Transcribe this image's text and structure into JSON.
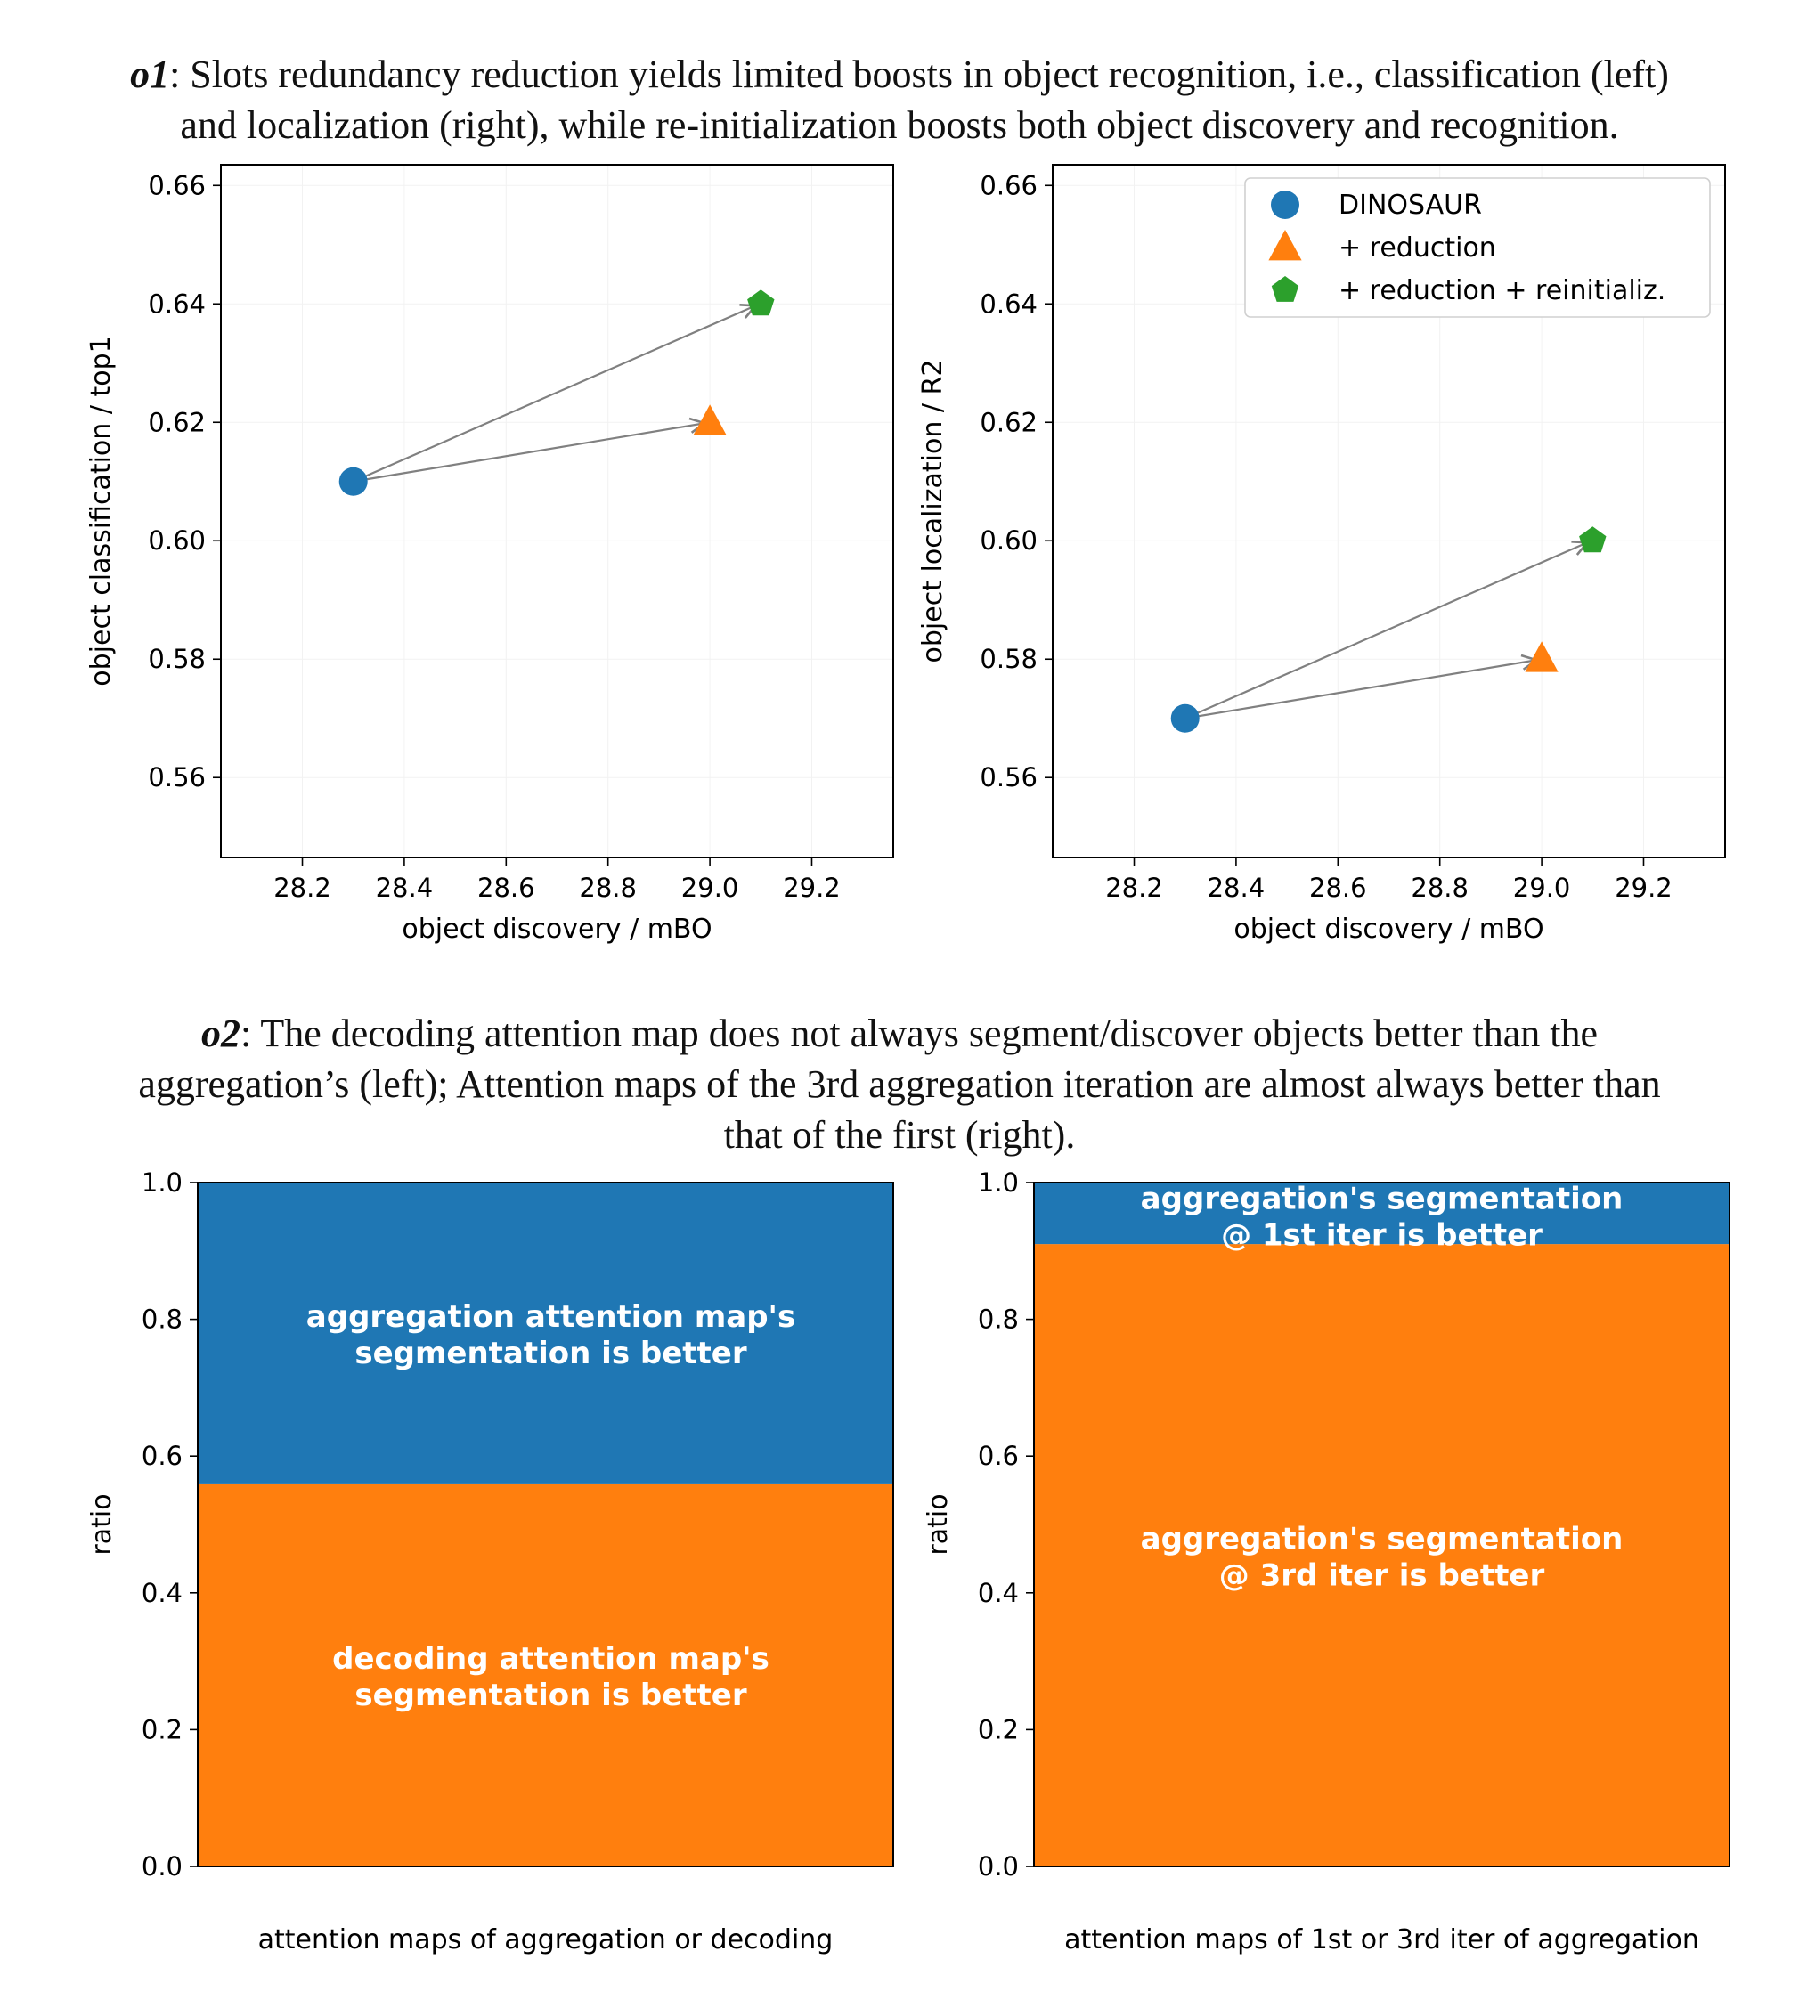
{
  "captions": {
    "o1": {
      "label": "o1",
      "line1": ": Slots redundancy reduction yields limited boosts in object recognition, i.e., classification (left)",
      "line2": "and localization (right), while re-initialization boosts both object discovery and recognition."
    },
    "o2": {
      "label": "o2",
      "line1": ": The decoding attention map does not always segment/discover objects better than the",
      "line2": "aggregation’s (left); Attention maps of the 3rd aggregation iteration are almost always better than",
      "line3": "that of the first (right)."
    }
  },
  "colors": {
    "blue": "#1f77b4",
    "orange": "#ff7f0e",
    "green": "#2ca02c",
    "arrow": "#808080"
  },
  "chart_data": [
    {
      "type": "scatter",
      "id": "top-left",
      "xlabel": "object discovery / mBO",
      "ylabel": "object classification / top1",
      "xlim": [
        28.04,
        29.36
      ],
      "ylim": [
        0.5465,
        0.6635
      ],
      "xticks": [
        28.2,
        28.4,
        28.6,
        28.8,
        29.0,
        29.2
      ],
      "yticks": [
        0.56,
        0.58,
        0.6,
        0.62,
        0.64,
        0.66
      ],
      "points": [
        {
          "name": "DINOSAUR",
          "marker": "circle",
          "x": 28.3,
          "y": 0.61
        },
        {
          "name": "+ reduction",
          "marker": "triangle",
          "x": 29.0,
          "y": 0.62
        },
        {
          "name": "+ reduction + reinitializ.",
          "marker": "pentagon",
          "x": 29.1,
          "y": 0.64
        }
      ],
      "arrows": [
        {
          "from": [
            28.3,
            0.61
          ],
          "to": [
            29.0,
            0.62
          ]
        },
        {
          "from": [
            28.3,
            0.61
          ],
          "to": [
            29.1,
            0.64
          ]
        }
      ],
      "legend": null
    },
    {
      "type": "scatter",
      "id": "top-right",
      "xlabel": "object discovery / mBO",
      "ylabel": "object localization / R2",
      "xlim": [
        28.04,
        29.36
      ],
      "ylim": [
        0.5465,
        0.6635
      ],
      "xticks": [
        28.2,
        28.4,
        28.6,
        28.8,
        29.0,
        29.2
      ],
      "yticks": [
        0.56,
        0.58,
        0.6,
        0.62,
        0.64,
        0.66
      ],
      "points": [
        {
          "name": "DINOSAUR",
          "marker": "circle",
          "x": 28.3,
          "y": 0.57
        },
        {
          "name": "+ reduction",
          "marker": "triangle",
          "x": 29.0,
          "y": 0.58
        },
        {
          "name": "+ reduction + reinitializ.",
          "marker": "pentagon",
          "x": 29.1,
          "y": 0.6
        }
      ],
      "arrows": [
        {
          "from": [
            28.3,
            0.57
          ],
          "to": [
            29.0,
            0.58
          ]
        },
        {
          "from": [
            28.3,
            0.57
          ],
          "to": [
            29.1,
            0.6
          ]
        }
      ],
      "legend": "top-right"
    },
    {
      "type": "bar",
      "id": "bottom-left",
      "stacked": true,
      "xlabel": "attention maps of aggregation or decoding",
      "ylabel": "ratio",
      "ylim": [
        0.0,
        1.0
      ],
      "yticks": [
        0.0,
        0.2,
        0.4,
        0.6,
        0.8,
        1.0
      ],
      "segments": [
        {
          "value": 0.56,
          "color": "orange",
          "label": [
            "decoding attention map's",
            "segmentation is better"
          ]
        },
        {
          "value": 0.44,
          "color": "blue",
          "label": [
            "aggregation attention map's",
            "segmentation is better"
          ]
        }
      ]
    },
    {
      "type": "bar",
      "id": "bottom-right",
      "stacked": true,
      "xlabel": "attention maps of 1st or 3rd iter of aggregation",
      "ylabel": "ratio",
      "ylim": [
        0.0,
        1.0
      ],
      "yticks": [
        0.0,
        0.2,
        0.4,
        0.6,
        0.8,
        1.0
      ],
      "segments": [
        {
          "value": 0.91,
          "color": "orange",
          "label": [
            "aggregation's segmentation",
            "@ 3rd iter is better"
          ]
        },
        {
          "value": 0.09,
          "color": "blue",
          "label": [
            "aggregation's segmentation",
            "@ 1st iter is better"
          ]
        }
      ]
    }
  ]
}
